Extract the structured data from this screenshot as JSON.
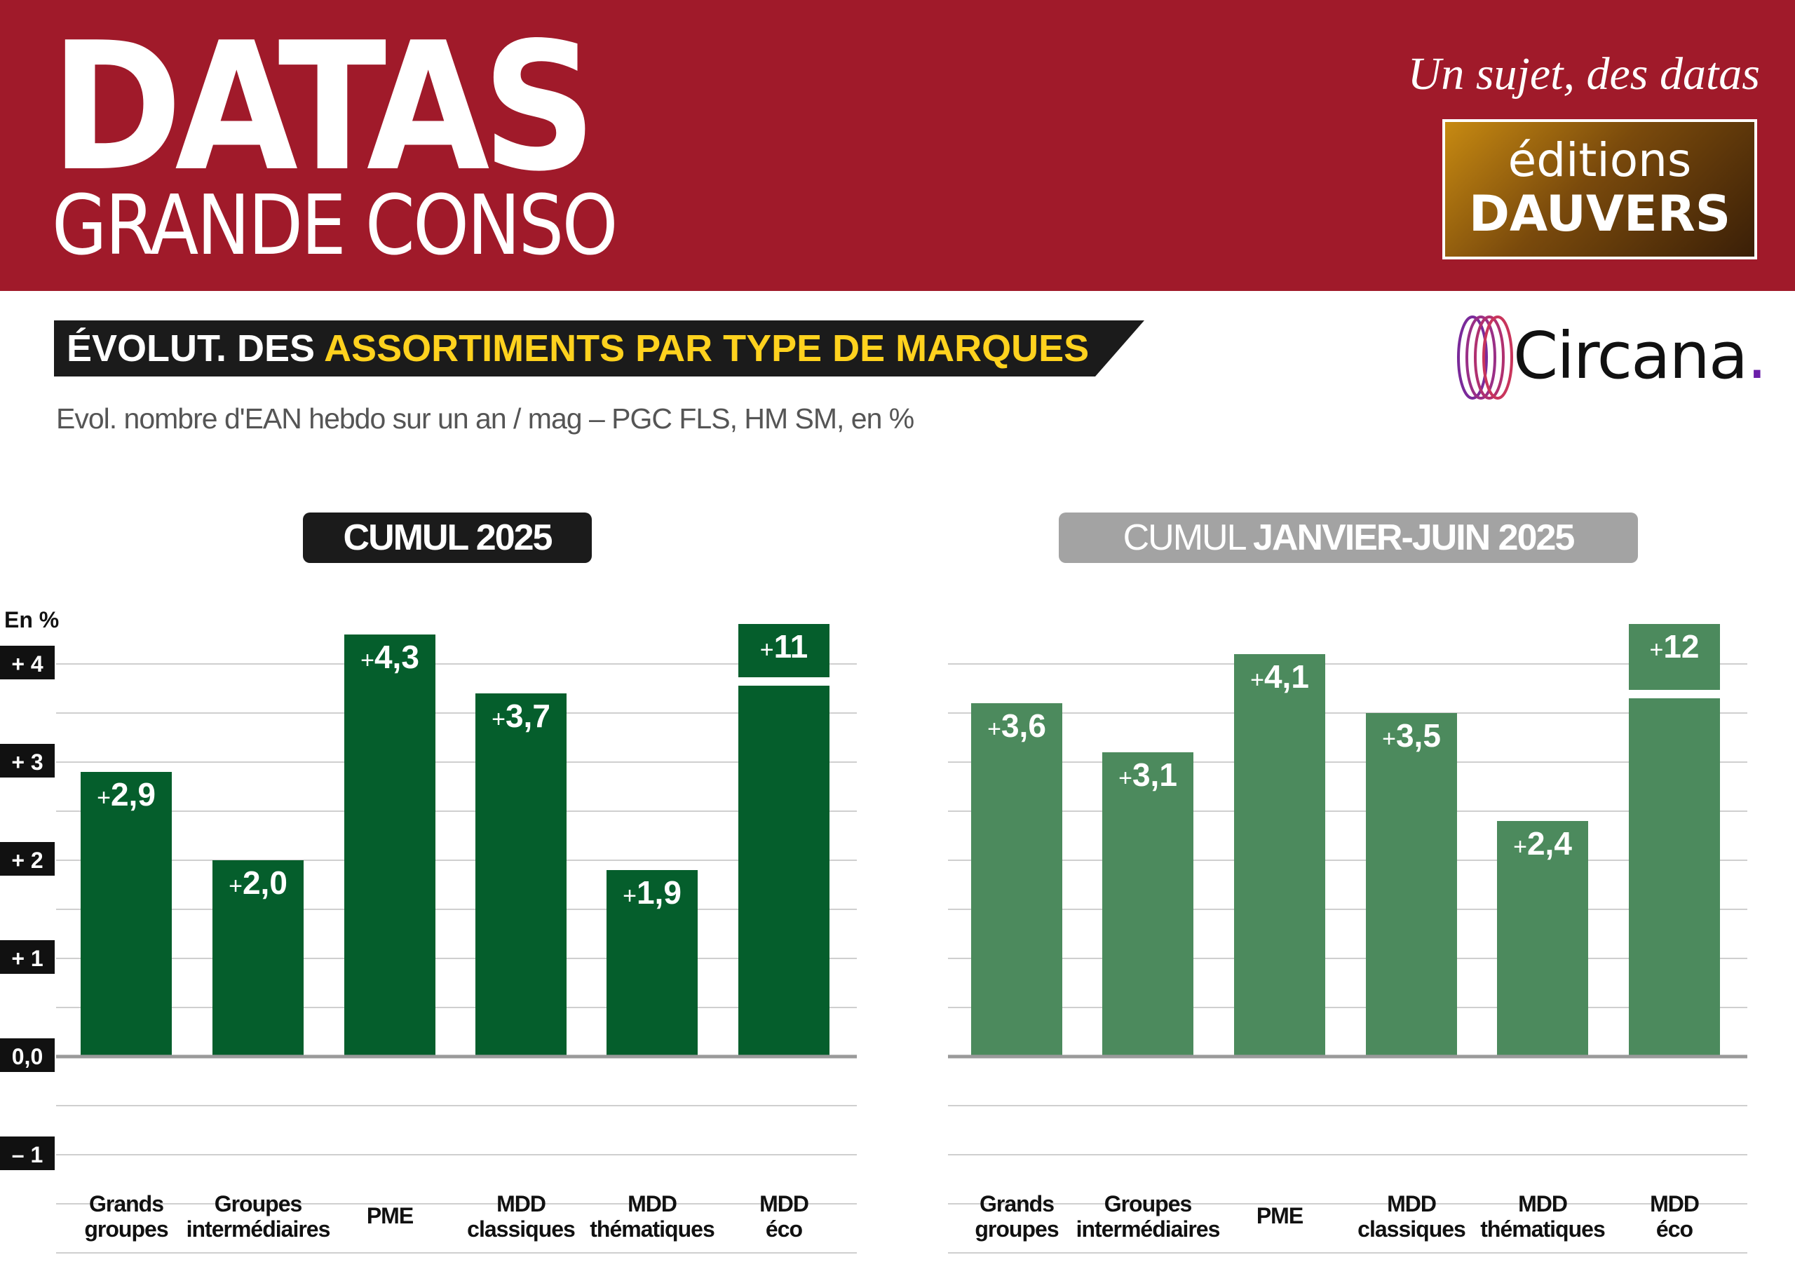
{
  "header": {
    "logo_main": "DATAS",
    "logo_sub": "GRANDE CONSO",
    "tagline": "Un sujet, des datas",
    "publisher_line1": "éditions",
    "publisher_line2": "DAUVERS"
  },
  "title": {
    "prefix": "ÉVOLUT. DES ",
    "highlight": "ASSORTIMENTS PAR TYPE DE MARQUES"
  },
  "source_brand": {
    "name": "Circana",
    "dot": "."
  },
  "subtitle": "Evol. nombre d'EAN hebdo sur un an / mag – PGC FLS, HM SM, en %",
  "panels": {
    "left_label": "CUMUL 2025",
    "right_label_light": "CUMUL ",
    "right_label_bold": "JANVIER-JUIN 2025"
  },
  "colors": {
    "banner": "#a01a2a",
    "title_highlight": "#ffd21e",
    "series_left": "#055e2c",
    "series_right": "#4c8a5d"
  },
  "chart_data": [
    {
      "type": "bar",
      "title": "CUMUL 2025",
      "ylabel": "En %",
      "ylim": [
        -1,
        4
      ],
      "yticks": [
        4,
        3,
        2,
        1,
        0,
        -1
      ],
      "ytick_labels": [
        "+ 4",
        "+ 3",
        "+ 2",
        "+ 1",
        "0,0",
        "– 1"
      ],
      "grid": true,
      "categories": [
        [
          "Grands",
          "groupes"
        ],
        [
          "Groupes",
          "intermédiaires"
        ],
        [
          "PME"
        ],
        [
          "MDD",
          "classiques"
        ],
        [
          "MDD",
          "thématiques"
        ],
        [
          "MDD",
          "éco"
        ]
      ],
      "values": [
        2.9,
        2.0,
        4.3,
        3.7,
        1.9,
        11
      ],
      "value_labels": [
        "2,9",
        "2,0",
        "4,3",
        "3,7",
        "1,9",
        "11"
      ],
      "broken_axis_bar_index": 5,
      "color": "#055e2c"
    },
    {
      "type": "bar",
      "title": "CUMUL JANVIER-JUIN 2025",
      "ylim": [
        -1,
        4
      ],
      "grid": true,
      "categories": [
        [
          "Grands",
          "groupes"
        ],
        [
          "Groupes",
          "intermédiaires"
        ],
        [
          "PME"
        ],
        [
          "MDD",
          "classiques"
        ],
        [
          "MDD",
          "thématiques"
        ],
        [
          "MDD",
          "éco"
        ]
      ],
      "values": [
        3.6,
        3.1,
        4.1,
        3.5,
        2.4,
        12
      ],
      "value_labels": [
        "3,6",
        "3,1",
        "4,1",
        "3,5",
        "2,4",
        "12"
      ],
      "broken_axis_bar_index": 5,
      "color": "#4c8a5d"
    }
  ]
}
